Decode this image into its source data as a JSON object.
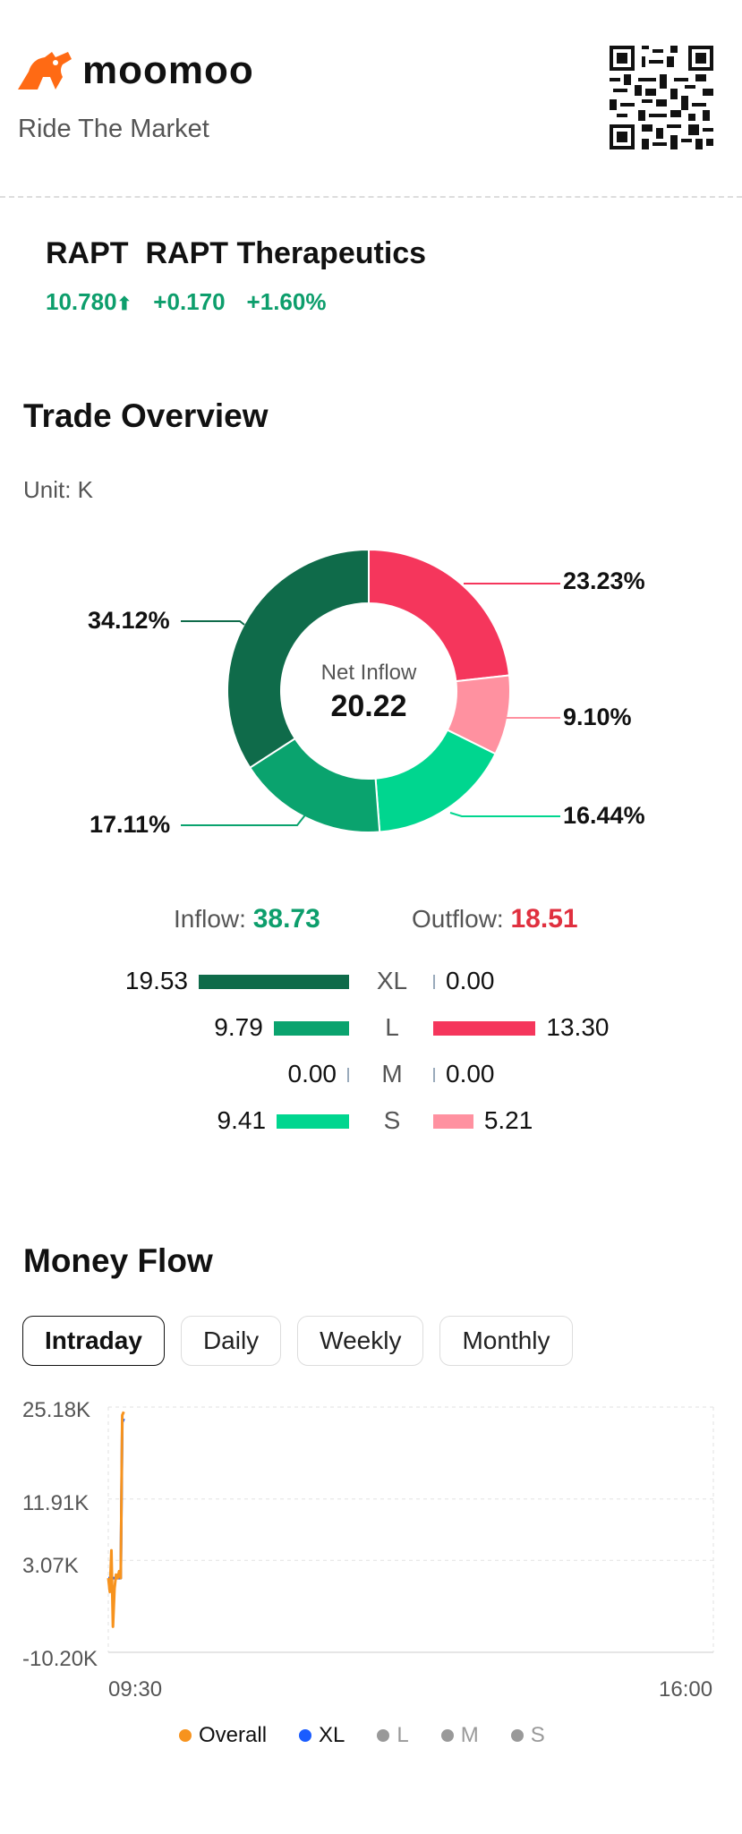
{
  "brand": {
    "name": "moomoo",
    "tagline": "Ride The Market"
  },
  "stock": {
    "ticker": "RAPT",
    "name": "RAPT Therapeutics",
    "price": "10.780",
    "change": "+0.170",
    "change_pct": "+1.60%"
  },
  "trade_overview": {
    "title": "Trade Overview",
    "unit": "Unit: K",
    "net_label": "Net Inflow",
    "net_value": "20.22",
    "donut": {
      "segments": [
        {
          "label": "23.23%",
          "value": 23.23,
          "color": "#f5365c"
        },
        {
          "label": "9.10%",
          "value": 9.1,
          "color": "#ff91a0"
        },
        {
          "label": "16.44%",
          "value": 16.44,
          "color": "#00d68f"
        },
        {
          "label": "17.11%",
          "value": 17.11,
          "color": "#0aa36e"
        },
        {
          "label": "34.12%",
          "value": 34.12,
          "color": "#0f6b4a"
        }
      ]
    },
    "inflow_label": "Inflow:",
    "inflow_value": "38.73",
    "outflow_label": "Outflow:",
    "outflow_value": "18.51",
    "rows": [
      {
        "label": "XL",
        "in": "19.53",
        "out": "0.00",
        "in_num": 19.53,
        "out_num": 0.0,
        "in_color": "#0f6b4a",
        "out_color": "#f5365c"
      },
      {
        "label": "L",
        "in": "9.79",
        "out": "13.30",
        "in_num": 9.79,
        "out_num": 13.3,
        "in_color": "#0aa36e",
        "out_color": "#f5365c"
      },
      {
        "label": "M",
        "in": "0.00",
        "out": "0.00",
        "in_num": 0.0,
        "out_num": 0.0,
        "in_color": "#0aa36e",
        "out_color": "#ff91a0"
      },
      {
        "label": "S",
        "in": "9.41",
        "out": "5.21",
        "in_num": 9.41,
        "out_num": 5.21,
        "in_color": "#00d68f",
        "out_color": "#ff91a0"
      }
    ]
  },
  "money_flow": {
    "title": "Money Flow",
    "tabs": [
      "Intraday",
      "Daily",
      "Weekly",
      "Monthly"
    ],
    "active_tab": "Intraday",
    "y_labels": [
      "25.18K",
      "11.91K",
      "3.07K",
      "-10.20K"
    ],
    "x_labels": [
      "09:30",
      "16:00"
    ],
    "legend": [
      {
        "name": "Overall",
        "color": "#f7931e",
        "active": true
      },
      {
        "name": "XL",
        "color": "#1a5cff",
        "active": true
      },
      {
        "name": "L",
        "color": "#999999",
        "active": false
      },
      {
        "name": "M",
        "color": "#999999",
        "active": false
      },
      {
        "name": "S",
        "color": "#999999",
        "active": false
      }
    ]
  },
  "chart_data": {
    "type": "line",
    "ylim": [
      -10.2,
      25.18
    ],
    "yticks": [
      25.18,
      11.91,
      3.07,
      -10.2
    ],
    "x_range": [
      "09:30",
      "16:00"
    ],
    "series": [
      {
        "name": "Overall",
        "color": "#f7931e",
        "x": [
          "09:30",
          "09:31",
          "09:32",
          "09:33",
          "09:34",
          "09:35",
          "09:36",
          "09:37",
          "09:38",
          "09:39",
          "09:40"
        ],
        "y": [
          0.5,
          -1.5,
          4.5,
          -6.5,
          -1.0,
          1.0,
          0.5,
          1.5,
          0.5,
          24.0,
          24.5
        ]
      },
      {
        "name": "XL",
        "color": "#1a5cff",
        "x": [
          "09:30",
          "09:31",
          "09:32",
          "09:33",
          "09:34",
          "09:35",
          "09:36",
          "09:37",
          "09:38",
          "09:39",
          "09:40"
        ],
        "y": [
          0.5,
          0.5,
          0.5,
          0.5,
          0.5,
          0.5,
          0.5,
          0.5,
          0.5,
          23.0,
          23.5
        ]
      }
    ]
  }
}
